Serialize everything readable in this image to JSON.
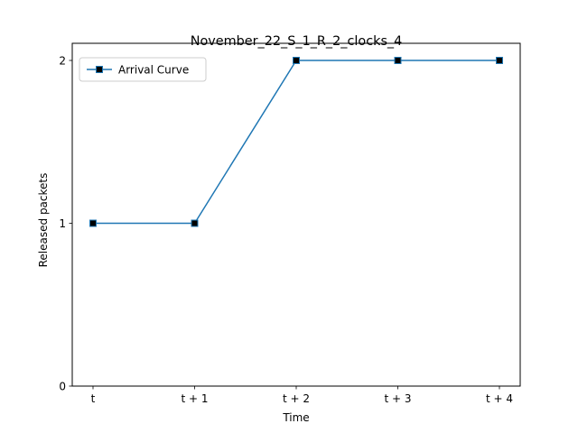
{
  "chart_data": {
    "type": "line",
    "title": "November_22_S_1_R_2_clocks_4",
    "xlabel": "Time",
    "ylabel": "Released packets",
    "categories": [
      "t",
      "t + 1",
      "t + 2",
      "t + 3",
      "t + 4"
    ],
    "yticks": [
      0,
      1,
      2
    ],
    "ylim": [
      0,
      2
    ],
    "grid": false,
    "legend_position": "top-left",
    "series": [
      {
        "name": "Arrival Curve",
        "values": [
          1,
          1,
          2,
          2,
          2
        ],
        "color": "#1f77b4",
        "marker": "square",
        "marker_fill": "#000000"
      }
    ]
  }
}
